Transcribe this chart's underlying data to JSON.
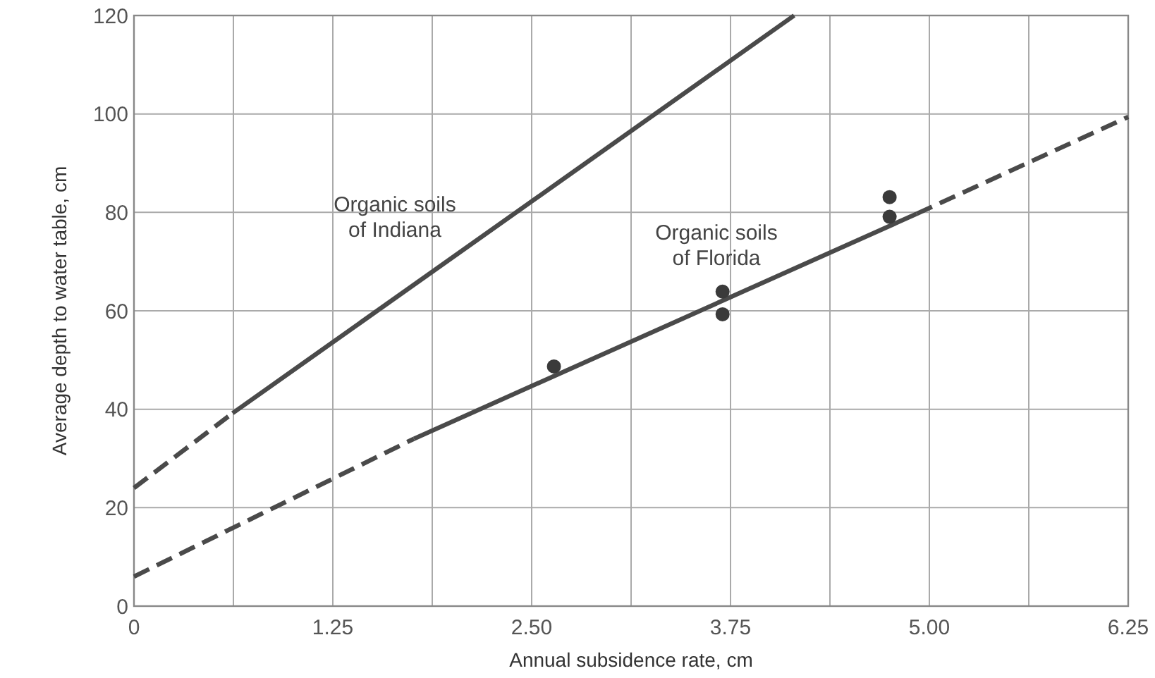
{
  "chart_data": {
    "type": "line",
    "xlabel": "Annual subsidence rate, cm",
    "ylabel": "Average depth to water table, cm",
    "xlim": [
      0,
      6.25
    ],
    "ylim": [
      0,
      120
    ],
    "xticks": [
      0,
      {
        "value": 0.625,
        "label": null
      },
      1.25,
      {
        "value": 1.875,
        "label": null
      },
      {
        "value": 2.5,
        "label": "2.50"
      },
      {
        "value": 3.125,
        "label": null
      },
      3.75,
      {
        "value": 4.375,
        "label": null
      },
      {
        "value": 5,
        "label": "5.00"
      },
      {
        "value": 5.625,
        "label": null
      },
      6.25
    ],
    "yticks": [
      0,
      20,
      40,
      60,
      80,
      100,
      120
    ],
    "grid": true,
    "series": [
      {
        "line_style": "dashed",
        "marker": "none",
        "color": "#4a4a4a",
        "x": [
          0,
          0.62
        ],
        "values": [
          24,
          39.2
        ]
      },
      {
        "line_style": "solid",
        "marker": "none",
        "color": "#4a4a4a",
        "x": [
          0.62,
          4.15
        ],
        "values": [
          39.2,
          120
        ]
      },
      {
        "line_style": "dashed",
        "marker": "none",
        "color": "#4a4a4a",
        "x": [
          0,
          1.76
        ],
        "values": [
          6,
          34
        ]
      },
      {
        "line_style": "solid",
        "marker": "none",
        "color": "#4a4a4a",
        "x": [
          1.76,
          4.92
        ],
        "values": [
          34,
          79.7
        ]
      },
      {
        "line_style": "dashed",
        "marker": "none",
        "color": "#4a4a4a",
        "x": [
          4.92,
          6.25
        ],
        "values": [
          79.7,
          99.4
        ]
      },
      {
        "type": "scatter",
        "marker": "circle",
        "color": "#3a3a3a",
        "x": [
          2.64,
          3.7,
          3.7,
          4.75,
          4.75
        ],
        "values": [
          48.7,
          63.9,
          59.3,
          83.1,
          79.1
        ]
      }
    ],
    "annotations": [
      "Organic soils\nof Indiana",
      "Organic soils\nof Florida"
    ]
  }
}
